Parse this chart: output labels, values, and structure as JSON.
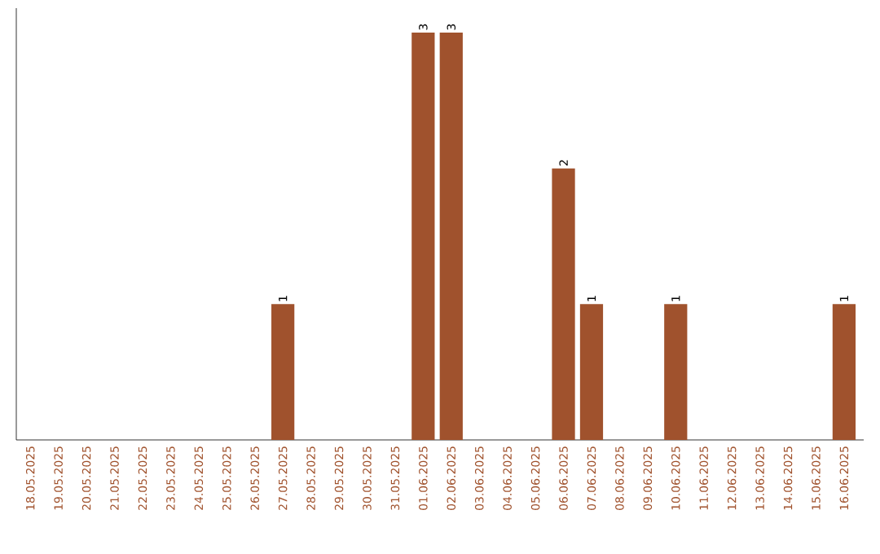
{
  "chart_data": {
    "type": "bar",
    "categories": [
      "18.05.2025",
      "19.05.2025",
      "20.05.2025",
      "21.05.2025",
      "22.05.2025",
      "23.05.2025",
      "24.05.2025",
      "25.05.2025",
      "26.05.2025",
      "27.05.2025",
      "28.05.2025",
      "29.05.2025",
      "30.05.2025",
      "31.05.2025",
      "01.06.2025",
      "02.06.2025",
      "03.06.2025",
      "04.06.2025",
      "05.06.2025",
      "06.06.2025",
      "07.06.2025",
      "08.06.2025",
      "09.06.2025",
      "10.06.2025",
      "11.06.2025",
      "12.06.2025",
      "13.06.2025",
      "14.06.2025",
      "15.06.2025",
      "16.06.2025"
    ],
    "values": [
      0,
      0,
      0,
      0,
      0,
      0,
      0,
      0,
      0,
      1,
      0,
      0,
      0,
      0,
      3,
      3,
      0,
      0,
      0,
      2,
      1,
      0,
      0,
      1,
      0,
      0,
      0,
      0,
      0,
      1
    ],
    "value_labels": [
      null,
      null,
      null,
      null,
      null,
      null,
      null,
      null,
      null,
      "1",
      null,
      null,
      null,
      null,
      "3",
      "3",
      null,
      null,
      null,
      "2",
      "1",
      null,
      null,
      "1",
      null,
      null,
      null,
      null,
      null,
      "1"
    ],
    "color": "#a0522d",
    "tick_labels": "x"
  }
}
